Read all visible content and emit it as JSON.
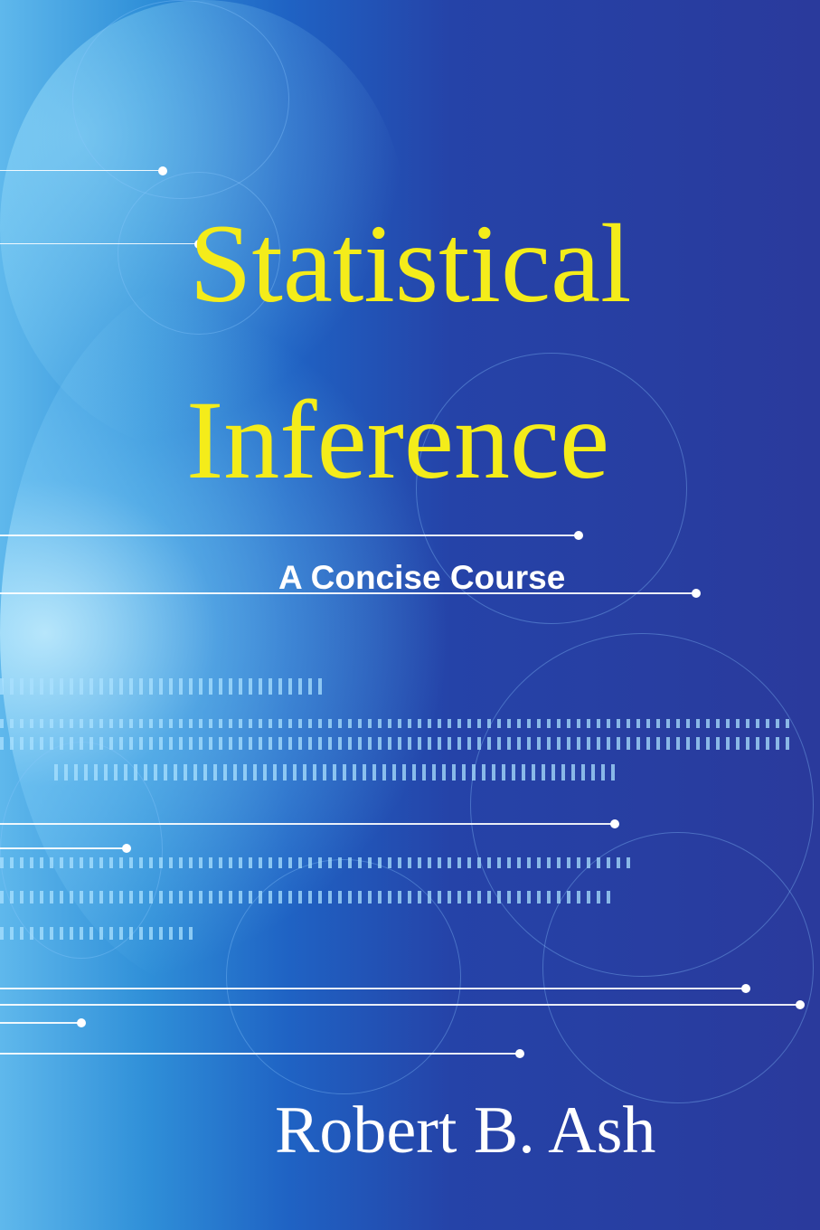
{
  "cover": {
    "title_line1": "Statistical",
    "title_line2": "Inference",
    "subtitle": "A Concise Course",
    "author": "Robert B. Ash"
  },
  "colors": {
    "title": "#f4ec1a",
    "background": "#2a3a9c",
    "text": "#ffffff"
  }
}
